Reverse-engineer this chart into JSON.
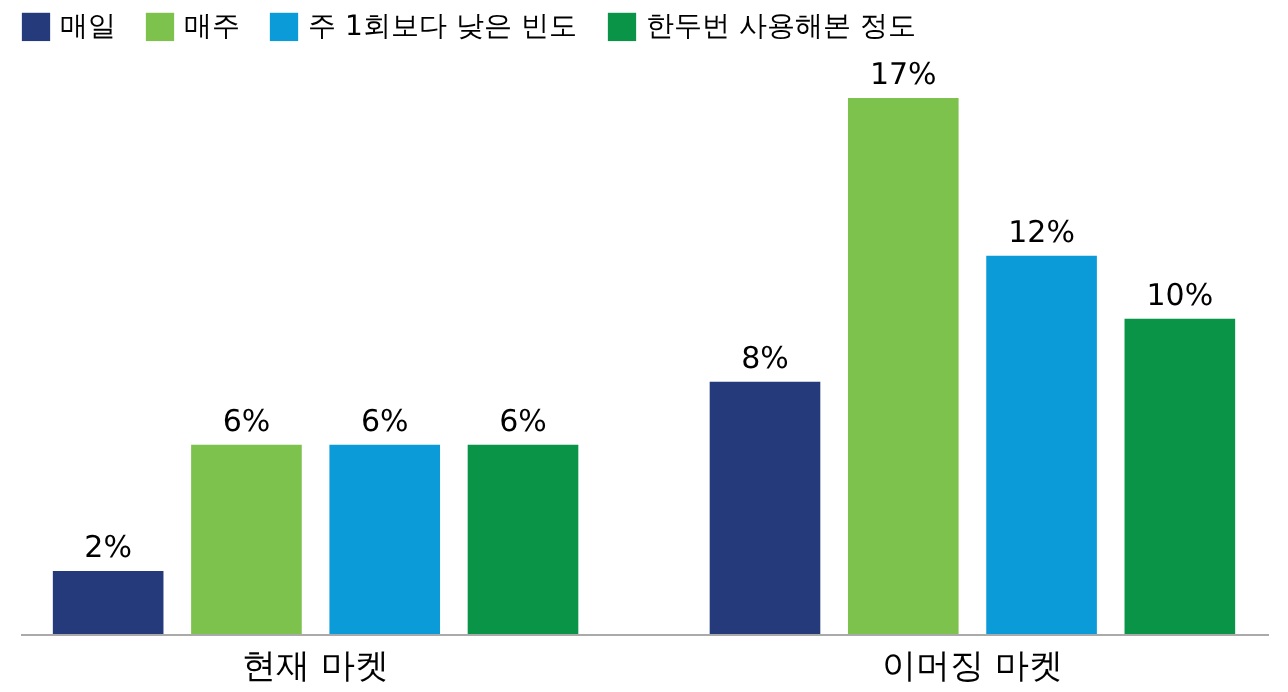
{
  "chart_data": {
    "type": "bar",
    "categories": [
      "현재 마켓",
      "이머징 마켓"
    ],
    "series": [
      {
        "name": "매일",
        "color": "#243a7a",
        "values": [
          2,
          8
        ],
        "value_labels": [
          "2%",
          "8%"
        ]
      },
      {
        "name": "매주",
        "color": "#7cc24c",
        "values": [
          6,
          17
        ],
        "value_labels": [
          "6%",
          "17%"
        ]
      },
      {
        "name": "주 1회보다 낮은 빈도",
        "color": "#0a9bd8",
        "values": [
          6,
          12
        ],
        "value_labels": [
          "6%",
          "12%"
        ]
      },
      {
        "name": "한두번 사용해본 정도",
        "color": "#0a9447",
        "values": [
          6,
          10
        ],
        "value_labels": [
          "6%",
          "10%"
        ]
      }
    ],
    "legend": "top"
  }
}
